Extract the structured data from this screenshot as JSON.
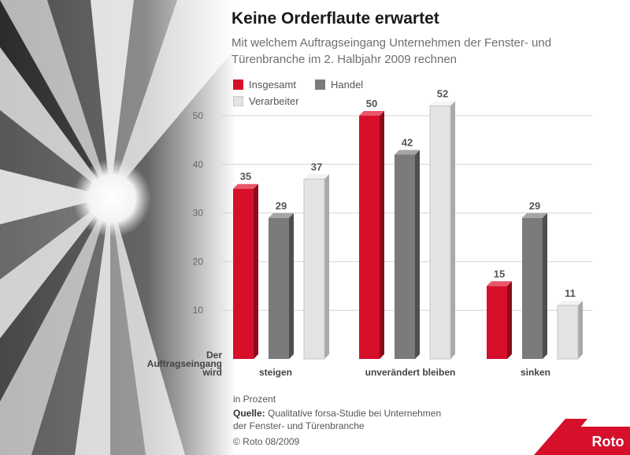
{
  "header": {
    "title": "Keine Orderflaute erwartet",
    "subtitle": "Mit welchem Auftragseingang Unternehmen der Fenster- und Türenbranche im 2. Halbjahr 2009 rechnen"
  },
  "row_label": {
    "line1": "Der",
    "line2": "Auftragseingang",
    "line3": "wird"
  },
  "footer": {
    "unit": "in Prozent",
    "source_label": "Quelle:",
    "source_line1": "Qualitative forsa-Studie bei Unternehmen",
    "source_line2": "der Fenster- und Türenbranche",
    "copyright": "© Roto 08/2009"
  },
  "logo": {
    "text": "Roto"
  },
  "chart_data": {
    "type": "bar",
    "title": "Keine Orderflaute erwartet",
    "categories": [
      "steigen",
      "unverändert bleiben",
      "sinken"
    ],
    "series": [
      {
        "name": "Insgesamt",
        "values": [
          35,
          50,
          15
        ],
        "color": "#d6102b"
      },
      {
        "name": "Handel",
        "values": [
          29,
          42,
          29
        ],
        "color": "#7b7b7b"
      },
      {
        "name": "Verarbeiter",
        "values": [
          37,
          52,
          11
        ],
        "color": "#e3e3e3"
      }
    ],
    "yticks": [
      10,
      20,
      30,
      40,
      50
    ],
    "ylim": [
      0,
      55
    ],
    "grid": true,
    "legend_position": "top-left",
    "data_labels": true
  }
}
